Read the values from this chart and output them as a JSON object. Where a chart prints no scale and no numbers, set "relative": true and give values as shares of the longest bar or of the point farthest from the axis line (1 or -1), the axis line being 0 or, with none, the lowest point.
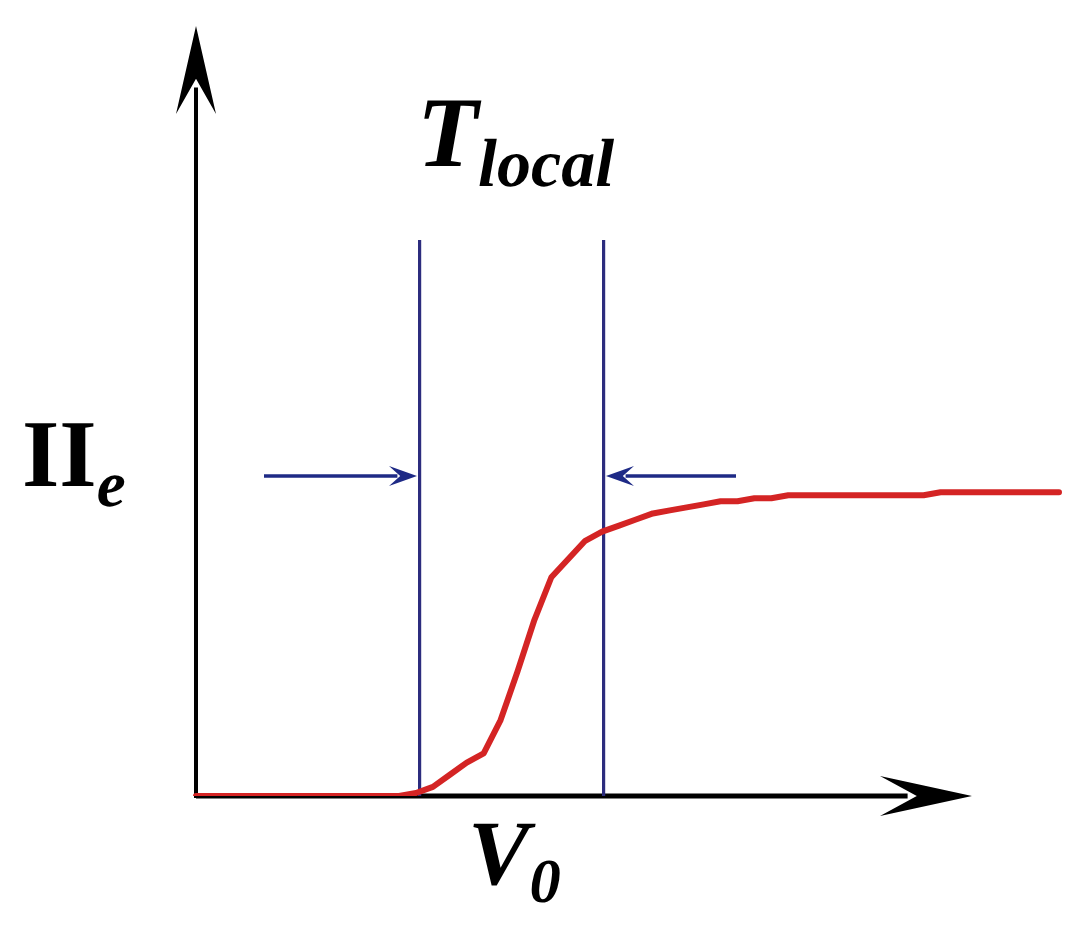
{
  "chart_data": {
    "type": "line",
    "relative": true,
    "xlabel": "V$_{0}$",
    "ylabel": "II$_{e}$",
    "annotations": [
      "T$_{local}$"
    ],
    "categories": [
      null,
      null,
      null,
      null,
      null,
      null,
      null,
      null,
      null,
      null,
      null,
      null,
      null,
      null,
      null,
      null,
      null,
      null,
      null,
      null,
      null,
      null,
      null,
      null,
      null,
      null,
      null,
      null,
      null,
      null,
      null,
      null,
      null,
      null,
      null,
      null,
      null,
      null,
      null,
      null,
      null,
      null,
      null,
      null,
      null,
      null,
      null,
      null,
      null,
      null,
      null,
      null
    ],
    "series": [
      {
        "color": "#d42424",
        "values": [
          0,
          0,
          0,
          0,
          0,
          0,
          0,
          0,
          0,
          0,
          0,
          0,
          0,
          0.01,
          0.03,
          0.07,
          0.11,
          0.14,
          0.25,
          0.41,
          0.58,
          0.72,
          0.78,
          0.84,
          0.87,
          0.89,
          0.91,
          0.93,
          0.94,
          0.95,
          0.96,
          0.97,
          0.97,
          0.98,
          0.98,
          0.99,
          0.99,
          0.99,
          0.99,
          0.99,
          0.99,
          0.99,
          0.99,
          0.99,
          1,
          1,
          1,
          1,
          1,
          1,
          1,
          1
        ]
      }
    ],
    "marker": "none",
    "line_style": "solid",
    "tick_labels": false
  }
}
